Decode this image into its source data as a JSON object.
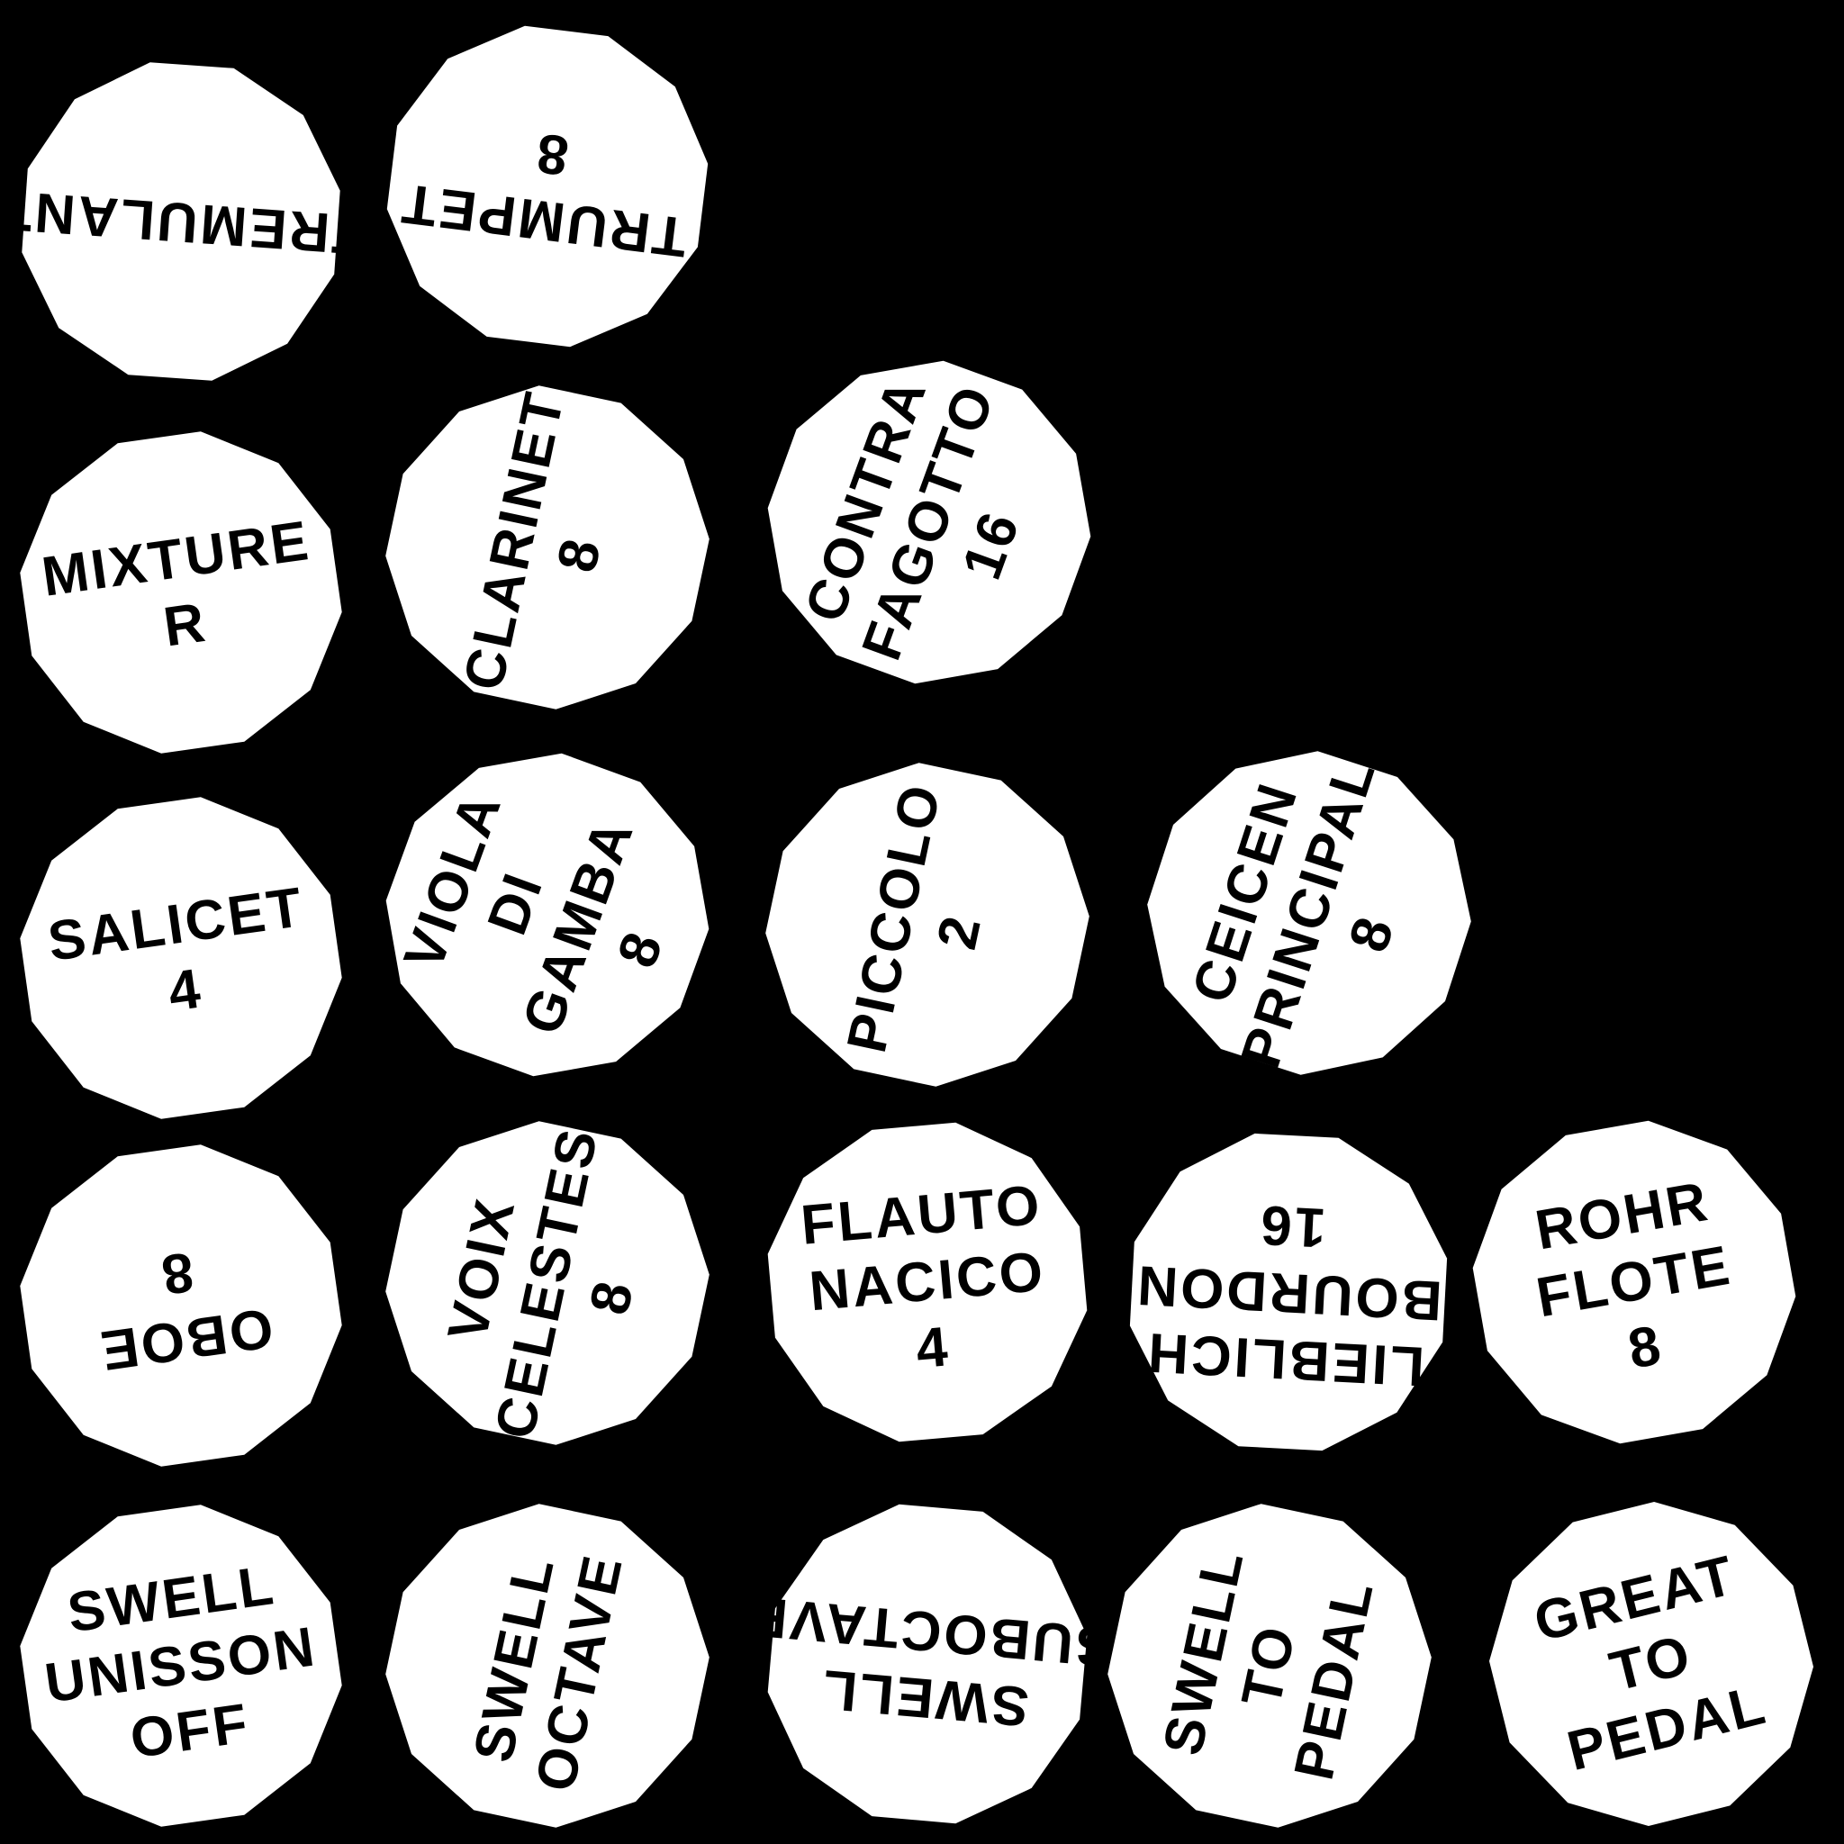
{
  "colors": {
    "background": "#000000",
    "knob_face": "#ffffff",
    "text": "#000000"
  },
  "knobs": {
    "tremulant": {
      "lines": [
        "TREMULANT"
      ]
    },
    "trumpet": {
      "lines": [
        "TRUMPET",
        "8"
      ]
    },
    "mixture": {
      "lines": [
        "MIXTURE",
        "R"
      ]
    },
    "clarinet": {
      "lines": [
        "CLARINET",
        "8"
      ]
    },
    "contra_fagotto": {
      "lines": [
        "CONTRA",
        "FAGOTTO",
        "16"
      ]
    },
    "salicet": {
      "lines": [
        "SALICET",
        "4"
      ]
    },
    "viola_di_gamba": {
      "lines": [
        "VIOLA",
        "DI",
        "GAMBA",
        "8"
      ]
    },
    "piccolo": {
      "lines": [
        "PICCOLO",
        "2"
      ]
    },
    "ceicen_principal": {
      "lines": [
        "CEICEN",
        "PRINCIPAL",
        "8"
      ]
    },
    "oboe": {
      "lines": [
        "OBOE",
        "8"
      ]
    },
    "voix_celestes": {
      "lines": [
        "VOIX",
        "CELESTES",
        "8"
      ]
    },
    "flauto_nacico": {
      "lines": [
        "FLAUTO",
        "NACICO",
        "4"
      ]
    },
    "lieblich_bourdon": {
      "lines": [
        "LIEBLICH",
        "BOURDON",
        "16"
      ]
    },
    "rohr_flote": {
      "lines": [
        "ROHR",
        "FLOTE",
        "8"
      ]
    },
    "swell_unisson_off": {
      "lines": [
        "SWELL",
        "UNISSON",
        "OFF"
      ]
    },
    "swell_octave": {
      "lines": [
        "SWELL",
        "OCTAVE"
      ]
    },
    "swell_suboctave": {
      "lines": [
        "SWELL",
        "SUBOCTAVE"
      ]
    },
    "swell_to_pedal": {
      "lines": [
        "SWELL",
        "TO",
        "PEDAL"
      ]
    },
    "great_to_pedal": {
      "lines": [
        "GREAT",
        "TO",
        "PEDAL"
      ]
    }
  }
}
